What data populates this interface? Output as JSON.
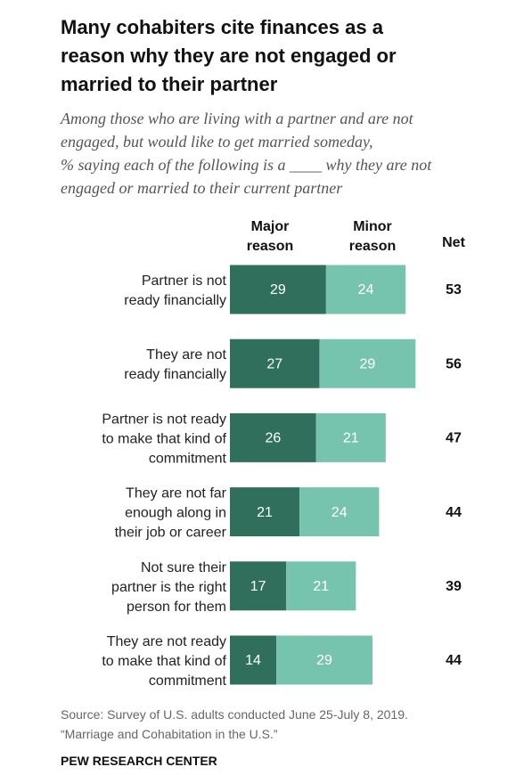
{
  "chart_data": {
    "type": "stacked-bar-horizontal",
    "title": [
      "Many cohabiters cite finances as a",
      "reason why they are not engaged or",
      "married to their partner"
    ],
    "subtitle": [
      "Among those who are living with a partner and are not",
      "engaged, but would like to get married someday,",
      "% saying each of the following is a ____ why they are not",
      "engaged or married to their current partner"
    ],
    "categories": [
      [
        "Partner is not",
        "ready financially"
      ],
      [
        "They are not",
        "ready financially"
      ],
      [
        "Partner is not ready",
        "to make that kind of",
        "commitment"
      ],
      [
        "They are not far",
        "enough along in",
        "their job or career"
      ],
      [
        "Not sure their",
        "partner is the right",
        "person for them"
      ],
      [
        "They are not ready",
        "to make that kind of",
        "commitment"
      ]
    ],
    "series": [
      {
        "name": "Major reason",
        "color": "#2f6f5c",
        "values": [
          29,
          27,
          26,
          21,
          17,
          14
        ]
      },
      {
        "name": "Minor reason",
        "color": "#76c4ae",
        "values": [
          24,
          29,
          21,
          24,
          21,
          29
        ]
      }
    ],
    "totals_label": "Net",
    "totals": [
      53,
      56,
      47,
      44,
      39,
      44
    ],
    "source": [
      "Source: Survey of U.S. adults conducted June 25-July 8, 2019.",
      "“Marriage and Cohabitation in the U.S.”"
    ],
    "credit": "PEW RESEARCH CENTER"
  }
}
